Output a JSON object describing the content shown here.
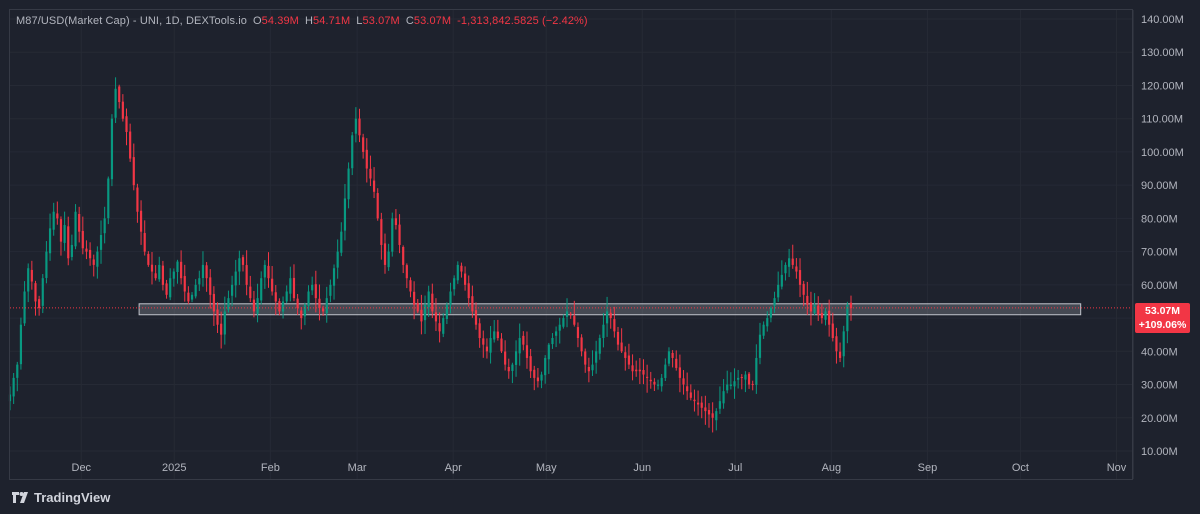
{
  "header": {
    "symbol": "M87/USD(Market Cap)",
    "source": " - UNI, 1D, DEXTools.io",
    "o_label": "O",
    "o_value": "54.39M",
    "h_label": "H",
    "h_value": "54.71M",
    "l_label": "L",
    "l_value": "53.07M",
    "c_label": "C",
    "c_value": "53.07M",
    "change": "-1,313,842.5825 (−2.42%)"
  },
  "badge": {
    "price": "53.07M",
    "change": "+109.06%"
  },
  "brand": {
    "name": "TradingView"
  },
  "colors": {
    "up": "#089981",
    "down": "#f23645",
    "background": "#131722",
    "zone": "#d1d4dc",
    "text": "#b2b5be"
  },
  "chart_data": {
    "type": "candlestick",
    "y_unit": "M",
    "ylim": [
      10,
      140
    ],
    "y_ticks": [
      10,
      20,
      30,
      40,
      50,
      60,
      70,
      80,
      90,
      100,
      110,
      120,
      130,
      140
    ],
    "y_tick_labels": [
      "10.00M",
      "20.00M",
      "30.00M",
      "40.00M",
      "50.00M",
      "60.00M",
      "70.00M",
      "80.00M",
      "90.00M",
      "100.00M",
      "110.00M",
      "120.00M",
      "130.00M",
      "140.00M"
    ],
    "x_ticks": [
      {
        "label": "Dec",
        "day": 22
      },
      {
        "label": "2025",
        "day": 52
      },
      {
        "label": "Feb",
        "day": 83
      },
      {
        "label": "Mar",
        "day": 111
      },
      {
        "label": "Apr",
        "day": 142
      },
      {
        "label": "May",
        "day": 172
      },
      {
        "label": "Jun",
        "day": 203
      },
      {
        "label": "Jul",
        "day": 233
      },
      {
        "label": "Aug",
        "day": 264
      },
      {
        "label": "Sep",
        "day": 295
      },
      {
        "label": "Oct",
        "day": 325
      },
      {
        "label": "Nov",
        "day": 356
      }
    ],
    "day_range": [
      -1,
      361
    ],
    "closes": [
      27,
      32,
      36,
      48,
      58,
      65,
      61,
      55,
      53,
      62,
      70,
      77,
      82,
      80,
      73,
      78,
      68,
      72,
      82,
      76,
      71,
      70,
      68,
      66,
      70,
      75,
      80,
      92,
      110,
      119,
      115,
      110,
      106,
      98,
      90,
      82,
      76,
      70,
      66,
      64,
      62,
      66,
      60,
      57,
      62,
      64,
      67,
      62,
      58,
      55,
      57,
      60,
      62,
      66,
      62,
      57,
      52,
      48,
      45,
      52,
      56,
      60,
      64,
      68,
      66,
      60,
      56,
      52,
      56,
      62,
      66,
      62,
      58,
      55,
      52,
      55,
      58,
      62,
      56,
      53,
      50,
      54,
      58,
      60,
      56,
      53,
      52,
      56,
      60,
      65,
      70,
      76,
      86,
      95,
      105,
      110,
      105,
      100,
      95,
      92,
      88,
      80,
      72,
      66,
      70,
      80,
      78,
      72,
      66,
      62,
      58,
      54,
      52,
      49,
      54,
      58,
      52,
      49,
      46,
      50,
      54,
      58,
      62,
      66,
      64,
      60,
      56,
      52,
      48,
      44,
      42,
      40,
      44,
      46,
      44,
      40,
      36,
      34,
      36,
      40,
      44,
      42,
      38,
      34,
      32,
      31,
      33,
      38,
      42,
      44,
      46,
      48,
      50,
      52,
      51,
      48,
      44,
      40,
      36,
      34,
      36,
      40,
      44,
      48,
      52,
      50,
      46,
      42,
      40,
      38,
      36,
      34,
      34,
      34,
      33,
      32,
      31,
      30,
      30,
      32,
      36,
      40,
      38,
      35,
      32,
      30,
      28,
      26,
      25,
      24,
      23,
      22,
      21,
      20,
      22,
      25,
      28,
      30,
      30,
      31,
      32,
      32,
      33,
      30,
      30,
      38,
      45,
      48,
      50,
      53,
      56,
      60,
      63,
      66,
      68,
      66,
      64,
      60,
      57,
      54,
      52,
      54,
      51,
      50,
      52,
      48,
      44,
      40,
      38,
      46,
      54,
      53
    ],
    "zone": {
      "low": 51.0,
      "high": 54.3,
      "day_start": 0,
      "day_end": 358
    },
    "last_price": 53.07
  }
}
